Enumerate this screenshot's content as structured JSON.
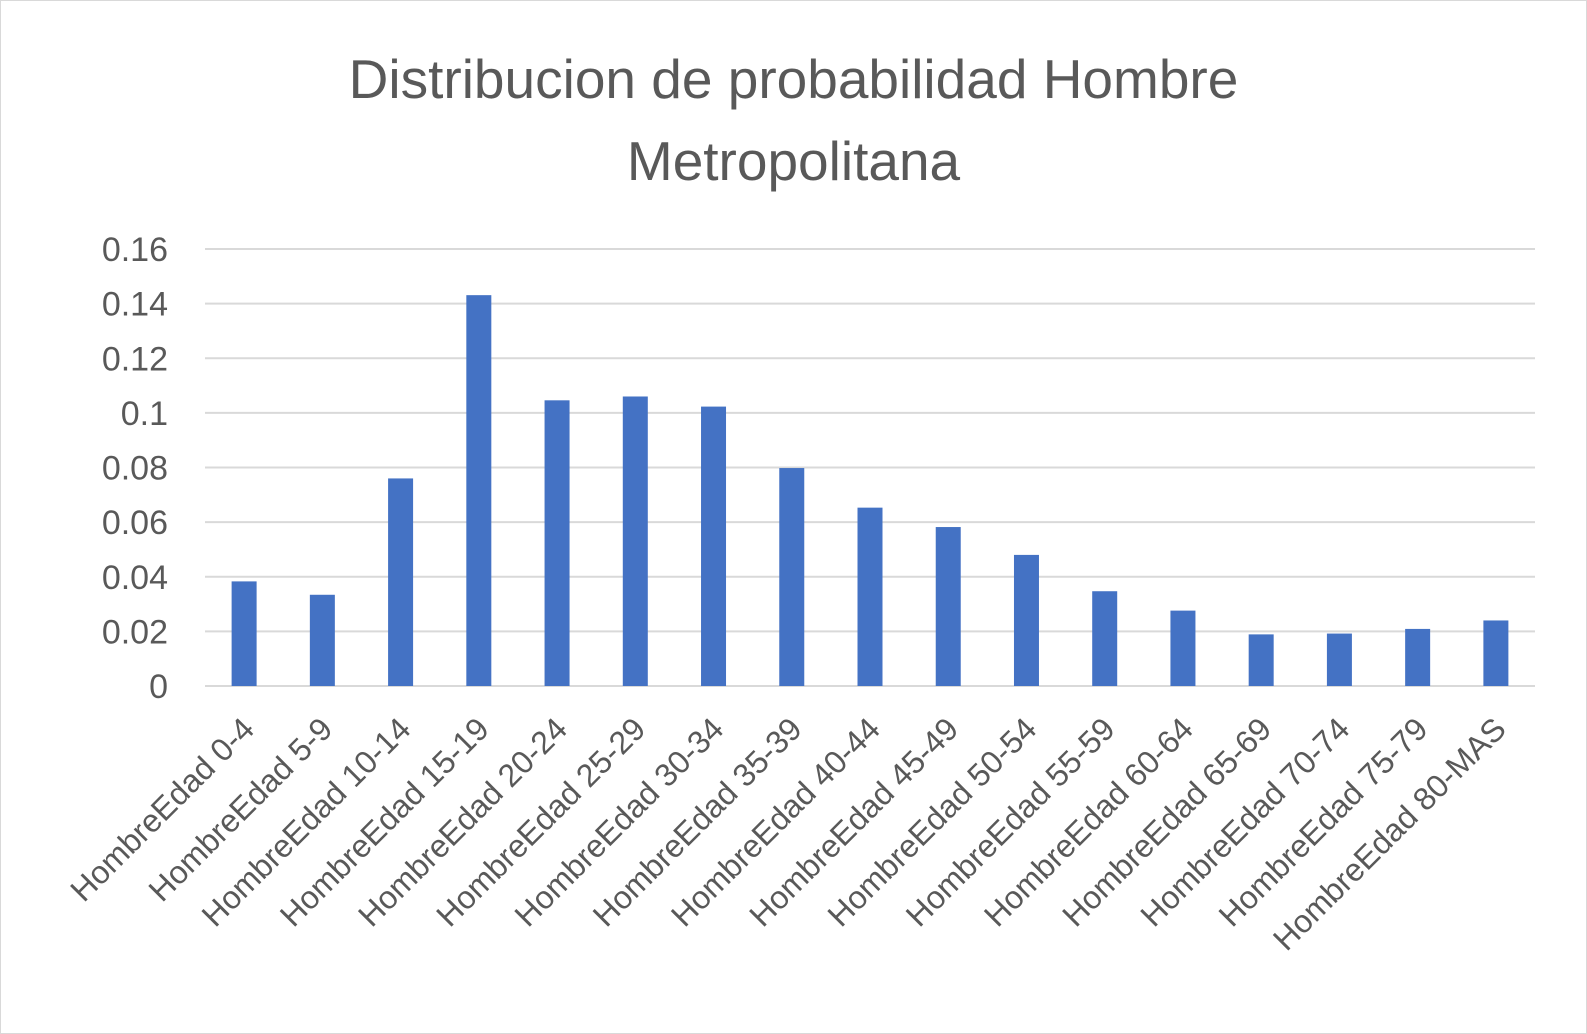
{
  "chart_data": {
    "type": "bar",
    "title_lines": [
      "Distribucion de probabilidad Hombre",
      "Metropolitana"
    ],
    "categories": [
      "HombreEdad 0-4",
      "HombreEdad 5-9",
      "HombreEdad 10-14",
      "HombreEdad 15-19",
      "HombreEdad 20-24",
      "HombreEdad 25-29",
      "HombreEdad 30-34",
      "HombreEdad 35-39",
      "HombreEdad 40-44",
      "HombreEdad 45-49",
      "HombreEdad 50-54",
      "HombreEdad 55-59",
      "HombreEdad 60-64",
      "HombreEdad 65-69",
      "HombreEdad 70-74",
      "HombreEdad 75-79",
      "HombreEdad 80-MAS"
    ],
    "values": [
      0.0383,
      0.0334,
      0.076,
      0.1431,
      0.1046,
      0.106,
      0.1023,
      0.0798,
      0.0653,
      0.0582,
      0.048,
      0.0347,
      0.0276,
      0.0189,
      0.0192,
      0.0209,
      0.024
    ],
    "ylim": [
      0,
      0.16
    ],
    "yticks": [
      "0",
      "0.02",
      "0.04",
      "0.06",
      "0.08",
      "0.1",
      "0.12",
      "0.14",
      "0.16"
    ],
    "grid": true,
    "legend": "none",
    "bar_color": "#4472c4"
  }
}
